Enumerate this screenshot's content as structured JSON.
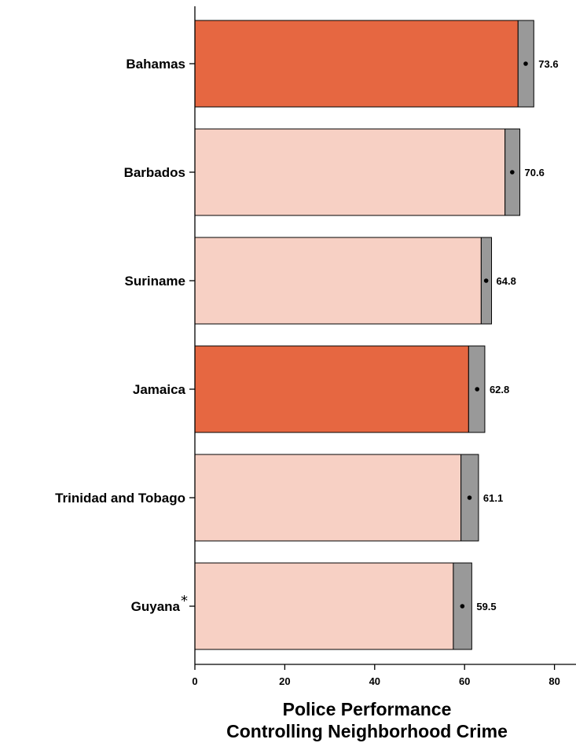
{
  "chart_data": {
    "type": "bar",
    "orientation": "horizontal",
    "categories": [
      "Bahamas",
      "Barbados",
      "Suriname",
      "Jamaica",
      "Trinidad and Tobago",
      "Guyana"
    ],
    "category_markers": [
      "",
      "",
      "",
      "",
      "",
      "*"
    ],
    "values": [
      73.6,
      70.6,
      64.8,
      62.8,
      61.1,
      59.5
    ],
    "value_labels": [
      "73.6",
      "70.6",
      "64.8",
      "62.8",
      "61.1",
      "59.5"
    ],
    "ci_low": [
      71.9,
      69.0,
      63.7,
      60.9,
      59.2,
      57.5
    ],
    "ci_high": [
      75.4,
      72.3,
      66.0,
      64.5,
      63.1,
      61.6
    ],
    "highlighted": [
      true,
      false,
      false,
      true,
      false,
      false
    ],
    "xlim": [
      0,
      85
    ],
    "xticks": [
      0,
      20,
      40,
      60,
      80
    ],
    "xtick_labels": [
      "0",
      "20",
      "40",
      "60",
      "80"
    ],
    "xlabel": [
      "Police Performance",
      "Controlling Neighborhood Crime"
    ],
    "grid": false,
    "colors": {
      "highlight": "#e66741",
      "normal": "#f7d0c4",
      "ci": "#999999",
      "outline": "#000000"
    }
  }
}
